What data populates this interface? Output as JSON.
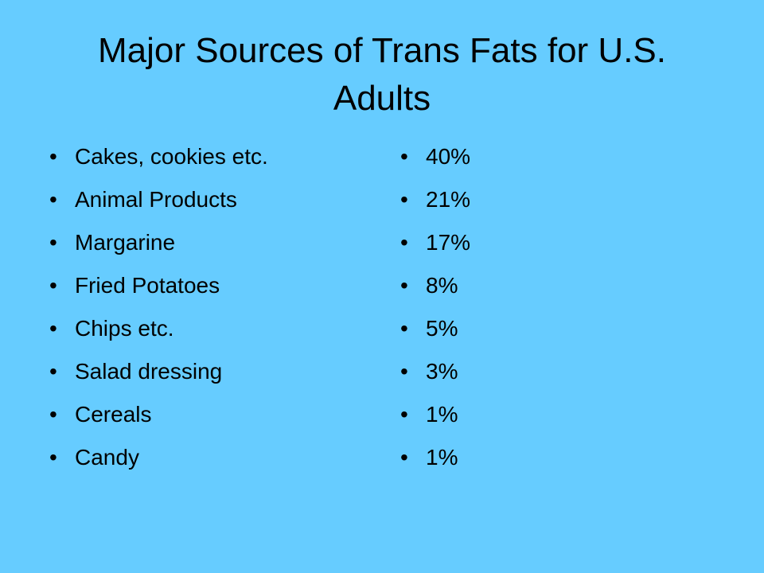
{
  "title": "Major Sources of Trans Fats for U.S. Adults",
  "left_items": [
    "Cakes, cookies etc.",
    "Animal Products",
    "Margarine",
    "Fried Potatoes",
    "Chips etc.",
    "Salad dressing",
    "Cereals",
    "Candy"
  ],
  "right_items": [
    "40%",
    "21%",
    "17%",
    "8%",
    "5%",
    "3%",
    "1%",
    "1%"
  ]
}
